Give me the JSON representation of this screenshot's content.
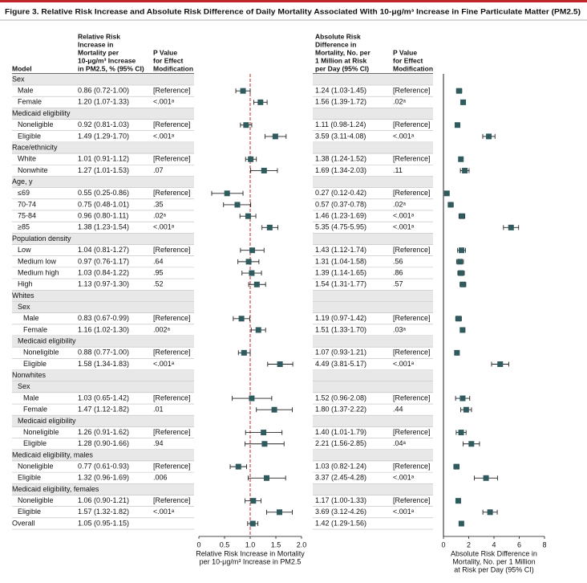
{
  "chart_data": {
    "type": "forest",
    "title": "Figure 3. Relative Risk Increase and Absolute Risk Difference of Daily Mortality Associated With 10-μg/m³ Increase in Fine Particulate Matter (PM2.5)",
    "headers": {
      "model": [
        "Model"
      ],
      "rr": [
        "Relative Risk",
        "Increase in",
        "Mortality per",
        "10-μg/m³ Increase",
        "in PM2.5, % (95% CI)"
      ],
      "p": [
        "P Value",
        "for Effect",
        "Modification"
      ],
      "ar": [
        "Absolute Risk",
        "Difference in",
        "Mortality, No. per",
        "1 Million at Risk",
        "per Day (95% CI)"
      ],
      "p2": [
        "P Value",
        "for Effect",
        "Modification"
      ]
    },
    "panels": [
      {
        "xlabel": [
          "Relative Risk Increase in Mortality",
          "per 10-μg/m³ Increase in PM2.5"
        ],
        "xlim": [
          0,
          2
        ],
        "xticks": [
          0,
          0.5,
          {
            "value": 1,
            "label": "1.0"
          },
          1.5,
          {
            "value": 2,
            "label": "2.0"
          }
        ],
        "reference": 1,
        "reference_color": "#c0272d",
        "reference_dashed": true
      },
      {
        "xlabel": [
          "Absolute Risk Difference in",
          "Mortality, No. per 1 Million",
          "at Risk per Day (95% CI)"
        ],
        "xlim": [
          0,
          8
        ],
        "xticks": [
          0,
          2,
          4,
          6,
          8
        ],
        "reference": 0,
        "reference_color": "#222",
        "reference_dashed": false
      }
    ],
    "marker_color": "#2f5b5e",
    "rows": [
      {
        "label": "Sex",
        "level": 0
      },
      {
        "label": "Male",
        "level": 1,
        "rr": [
          0.86,
          0.72,
          1.0
        ],
        "rr_label": "0.86 (0.72-1.00)",
        "p": "[Reference]",
        "ar": [
          1.24,
          1.03,
          1.45
        ],
        "ar_label": "1.24 (1.03-1.45)",
        "p2": "[Reference]"
      },
      {
        "label": "Female",
        "level": 1,
        "rr": [
          1.2,
          1.07,
          1.33
        ],
        "rr_label": "1.20 (1.07-1.33)",
        "p": "<.001ᵃ",
        "ar": [
          1.56,
          1.39,
          1.72
        ],
        "ar_label": "1.56 (1.39-1.72)",
        "p2": ".02ᵃ"
      },
      {
        "label": "Medicaid eligibility",
        "level": 0
      },
      {
        "label": "Noneligible",
        "level": 1,
        "rr": [
          0.92,
          0.81,
          1.03
        ],
        "rr_label": "0.92 (0.81-1.03)",
        "p": "[Reference]",
        "ar": [
          1.11,
          0.98,
          1.24
        ],
        "ar_label": "1.11 (0.98-1.24)",
        "p2": "[Reference]"
      },
      {
        "label": "Eligible",
        "level": 1,
        "rr": [
          1.49,
          1.29,
          1.7
        ],
        "rr_label": "1.49 (1.29-1.70)",
        "p": "<.001ᵃ",
        "ar": [
          3.59,
          3.11,
          4.08
        ],
        "ar_label": "3.59 (3.11-4.08)",
        "p2": "<.001ᵃ"
      },
      {
        "label": "Race/ethnicity",
        "level": 0
      },
      {
        "label": "White",
        "level": 1,
        "rr": [
          1.01,
          0.91,
          1.12
        ],
        "rr_label": "1.01 (0.91-1.12)",
        "p": "[Reference]",
        "ar": [
          1.38,
          1.24,
          1.52
        ],
        "ar_label": "1.38 (1.24-1.52)",
        "p2": "[Reference]"
      },
      {
        "label": "Nonwhite",
        "level": 1,
        "rr": [
          1.27,
          1.01,
          1.53
        ],
        "rr_label": "1.27 (1.01-1.53)",
        "p": ".07",
        "ar": [
          1.69,
          1.34,
          2.03
        ],
        "ar_label": "1.69 (1.34-2.03)",
        "p2": ".11"
      },
      {
        "label": "Age, y",
        "level": 0
      },
      {
        "label": "≤69",
        "level": 1,
        "rr": [
          0.55,
          0.25,
          0.86
        ],
        "rr_label": "0.55 (0.25-0.86)",
        "p": "[Reference]",
        "ar": [
          0.27,
          0.12,
          0.42
        ],
        "ar_label": "0.27 (0.12-0.42)",
        "p2": "[Reference]"
      },
      {
        "label": "70-74",
        "level": 1,
        "rr": [
          0.75,
          0.48,
          1.01
        ],
        "rr_label": "0.75 (0.48-1.01)",
        "p": ".35",
        "ar": [
          0.57,
          0.37,
          0.78
        ],
        "ar_label": "0.57 (0.37-0.78)",
        "p2": ".02ᵃ"
      },
      {
        "label": "75-84",
        "level": 1,
        "rr": [
          0.96,
          0.8,
          1.11
        ],
        "rr_label": "0.96 (0.80-1.11)",
        "p": ".02ᵃ",
        "ar": [
          1.46,
          1.23,
          1.69
        ],
        "ar_label": "1.46 (1.23-1.69)",
        "p2": "<.001ᵃ"
      },
      {
        "label": "≥85",
        "level": 1,
        "rr": [
          1.38,
          1.23,
          1.54
        ],
        "rr_label": "1.38 (1.23-1.54)",
        "p": "<.001ᵃ",
        "ar": [
          5.35,
          4.75,
          5.95
        ],
        "ar_label": "5.35 (4.75-5.95)",
        "p2": "<.001ᵃ"
      },
      {
        "label": "Population density",
        "level": 0
      },
      {
        "label": "Low",
        "level": 1,
        "rr": [
          1.04,
          0.81,
          1.27
        ],
        "rr_label": "1.04 (0.81-1.27)",
        "p": "[Reference]",
        "ar": [
          1.43,
          1.12,
          1.74
        ],
        "ar_label": "1.43 (1.12-1.74)",
        "p2": "[Reference]"
      },
      {
        "label": "Medium low",
        "level": 1,
        "rr": [
          0.97,
          0.76,
          1.17
        ],
        "rr_label": "0.97 (0.76-1.17)",
        "p": ".64",
        "ar": [
          1.31,
          1.04,
          1.58
        ],
        "ar_label": "1.31 (1.04-1.58)",
        "p2": ".56"
      },
      {
        "label": "Medium high",
        "level": 1,
        "rr": [
          1.03,
          0.84,
          1.22
        ],
        "rr_label": "1.03 (0.84-1.22)",
        "p": ".95",
        "ar": [
          1.39,
          1.14,
          1.65
        ],
        "ar_label": "1.39 (1.14-1.65)",
        "p2": ".86"
      },
      {
        "label": "High",
        "level": 1,
        "rr": [
          1.13,
          0.97,
          1.3
        ],
        "rr_label": "1.13 (0.97-1.30)",
        "p": ".52",
        "ar": [
          1.54,
          1.31,
          1.77
        ],
        "ar_label": "1.54 (1.31-1.77)",
        "p2": ".57"
      },
      {
        "label": "Whites",
        "level": 0
      },
      {
        "label": "Sex",
        "level": 1
      },
      {
        "label": "Male",
        "level": 2,
        "rr": [
          0.83,
          0.67,
          0.99
        ],
        "rr_label": "0.83 (0.67-0.99)",
        "p": "[Reference]",
        "ar": [
          1.19,
          0.97,
          1.42
        ],
        "ar_label": "1.19 (0.97-1.42)",
        "p2": "[Reference]"
      },
      {
        "label": "Female",
        "level": 2,
        "rr": [
          1.16,
          1.02,
          1.3
        ],
        "rr_label": "1.16 (1.02-1.30)",
        "p": ".002ᵃ",
        "ar": [
          1.51,
          1.33,
          1.7
        ],
        "ar_label": "1.51 (1.33-1.70)",
        "p2": ".03ᵃ"
      },
      {
        "label": "Medicaid eligibility",
        "level": 1
      },
      {
        "label": "Noneligible",
        "level": 2,
        "rr": [
          0.88,
          0.77,
          1.0
        ],
        "rr_label": "0.88 (0.77-1.00)",
        "p": "[Reference]",
        "ar": [
          1.07,
          0.93,
          1.21
        ],
        "ar_label": "1.07 (0.93-1.21)",
        "p2": "[Reference]"
      },
      {
        "label": "Eligible",
        "level": 2,
        "rr": [
          1.58,
          1.34,
          1.83
        ],
        "rr_label": "1.58 (1.34-1.83)",
        "p": "<.001ᵃ",
        "ar": [
          4.49,
          3.81,
          5.17
        ],
        "ar_label": "4.49 (3.81-5.17)",
        "p2": "<.001ᵃ"
      },
      {
        "label": "Nonwhites",
        "level": 0
      },
      {
        "label": "Sex",
        "level": 1
      },
      {
        "label": "Male",
        "level": 2,
        "rr": [
          1.03,
          0.65,
          1.42
        ],
        "rr_label": "1.03 (0.65-1.42)",
        "p": "[Reference]",
        "ar": [
          1.52,
          0.96,
          2.08
        ],
        "ar_label": "1.52 (0.96-2.08)",
        "p2": "[Reference]"
      },
      {
        "label": "Female",
        "level": 2,
        "rr": [
          1.47,
          1.12,
          1.82
        ],
        "rr_label": "1.47 (1.12-1.82)",
        "p": ".01",
        "ar": [
          1.8,
          1.37,
          2.22
        ],
        "ar_label": "1.80 (1.37-2.22)",
        "p2": ".44"
      },
      {
        "label": "Medicaid eligibility",
        "level": 1
      },
      {
        "label": "Noneligible",
        "level": 2,
        "rr": [
          1.26,
          0.91,
          1.62
        ],
        "rr_label": "1.26 (0.91-1.62)",
        "p": "[Reference]",
        "ar": [
          1.4,
          1.01,
          1.79
        ],
        "ar_label": "1.40 (1.01-1.79)",
        "p2": "[Reference]"
      },
      {
        "label": "Eligible",
        "level": 2,
        "rr": [
          1.28,
          0.9,
          1.66
        ],
        "rr_label": "1.28 (0.90-1.66)",
        "p": ".94",
        "ar": [
          2.21,
          1.56,
          2.85
        ],
        "ar_label": "2.21 (1.56-2.85)",
        "p2": ".04ᵃ"
      },
      {
        "label": "Medicaid eligibility, males",
        "level": 0
      },
      {
        "label": "Noneligible",
        "level": 1,
        "rr": [
          0.77,
          0.61,
          0.93
        ],
        "rr_label": "0.77 (0.61-0.93)",
        "p": "[Reference]",
        "ar": [
          1.03,
          0.82,
          1.24
        ],
        "ar_label": "1.03 (0.82-1.24)",
        "p2": "[Reference]"
      },
      {
        "label": "Eligible",
        "level": 1,
        "rr": [
          1.32,
          0.96,
          1.69
        ],
        "rr_label": "1.32 (0.96-1.69)",
        "p": ".006",
        "ar": [
          3.37,
          2.45,
          4.28
        ],
        "ar_label": "3.37 (2.45-4.28)",
        "p2": "<.001ᵃ"
      },
      {
        "label": "Medicaid eligibility, females",
        "level": 0
      },
      {
        "label": "Noneligible",
        "level": 1,
        "rr": [
          1.06,
          0.9,
          1.21
        ],
        "rr_label": "1.06 (0.90-1.21)",
        "p": "[Reference]",
        "ar": [
          1.17,
          1.0,
          1.33
        ],
        "ar_label": "1.17 (1.00-1.33)",
        "p2": "[Reference]"
      },
      {
        "label": "Eligible",
        "level": 1,
        "rr": [
          1.57,
          1.32,
          1.82
        ],
        "rr_label": "1.57 (1.32-1.82)",
        "p": "<.001ᵃ",
        "ar": [
          3.69,
          3.12,
          4.26
        ],
        "ar_label": "3.69 (3.12-4.26)",
        "p2": "<.001ᵃ"
      },
      {
        "label": "Overall",
        "level": 0,
        "rr": [
          1.05,
          0.95,
          1.15
        ],
        "rr_label": "1.05 (0.95-1.15)",
        "ar": [
          1.42,
          1.29,
          1.56
        ],
        "ar_label": "1.42 (1.29-1.56)"
      }
    ]
  }
}
